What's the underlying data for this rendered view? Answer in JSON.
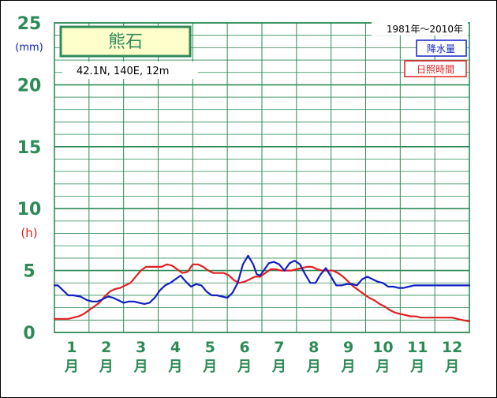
{
  "chart_data": {
    "type": "line",
    "title": "熊石",
    "subtitle": "42.1N, 140E, 12m",
    "period": "1981年〜2010年",
    "y_unit_precip": "(mm)",
    "y_unit_sun": "(h)",
    "ylim": [
      0,
      25
    ],
    "yticks": [
      "0",
      "5",
      "10",
      "15",
      "20",
      "25"
    ],
    "categories": [
      "1",
      "2",
      "3",
      "4",
      "5",
      "6",
      "7",
      "8",
      "9",
      "10",
      "11",
      "12"
    ],
    "month_suffix": "月",
    "grid": true,
    "legend_position": "top-right",
    "series": [
      {
        "name": "降水量",
        "color": "#1020c0",
        "x": [
          0.0,
          0.1,
          0.25,
          0.4,
          0.55,
          0.75,
          0.95,
          1.1,
          1.25,
          1.4,
          1.55,
          1.7,
          1.85,
          2.0,
          2.15,
          2.3,
          2.45,
          2.6,
          2.75,
          2.9,
          3.05,
          3.2,
          3.35,
          3.5,
          3.65,
          3.8,
          3.95,
          4.1,
          4.25,
          4.4,
          4.55,
          4.7,
          4.85,
          5.0,
          5.15,
          5.3,
          5.45,
          5.6,
          5.75,
          5.85,
          5.95,
          6.05,
          6.2,
          6.35,
          6.5,
          6.65,
          6.8,
          6.95,
          7.1,
          7.25,
          7.4,
          7.55,
          7.7,
          7.85,
          8.0,
          8.15,
          8.3,
          8.45,
          8.6,
          8.75,
          8.9,
          9.05,
          9.2,
          9.35,
          9.5,
          9.65,
          9.8,
          9.95,
          10.1,
          10.25,
          10.4,
          10.55,
          10.7,
          10.85,
          11.0,
          11.15,
          11.3,
          11.45,
          11.6,
          11.75,
          11.9,
          12.0
        ],
        "values": [
          3.8,
          3.8,
          3.4,
          3.0,
          3.0,
          2.9,
          2.6,
          2.5,
          2.5,
          2.7,
          2.9,
          2.8,
          2.6,
          2.4,
          2.5,
          2.5,
          2.4,
          2.3,
          2.4,
          2.8,
          3.4,
          3.8,
          4.0,
          4.3,
          4.6,
          4.1,
          3.7,
          3.9,
          3.8,
          3.3,
          3.0,
          3.0,
          2.9,
          2.8,
          3.2,
          4.0,
          5.5,
          6.2,
          5.5,
          4.7,
          4.6,
          5.0,
          5.6,
          5.7,
          5.5,
          5.0,
          5.6,
          5.8,
          5.5,
          4.7,
          4.0,
          4.0,
          4.7,
          5.2,
          4.5,
          3.8,
          3.8,
          3.9,
          3.9,
          3.8,
          4.3,
          4.5,
          4.3,
          4.1,
          4.0,
          3.7,
          3.7,
          3.6,
          3.6,
          3.7,
          3.8,
          3.8,
          3.8,
          3.8,
          3.8,
          3.8,
          3.8,
          3.8,
          3.8,
          3.8,
          3.8,
          3.8
        ]
      },
      {
        "name": "日照時間",
        "color": "#e02020",
        "x": [
          0.0,
          0.2,
          0.4,
          0.55,
          0.7,
          0.85,
          1.0,
          1.15,
          1.3,
          1.45,
          1.6,
          1.75,
          1.9,
          2.05,
          2.2,
          2.35,
          2.5,
          2.65,
          2.8,
          2.95,
          3.1,
          3.25,
          3.4,
          3.55,
          3.7,
          3.85,
          4.0,
          4.15,
          4.3,
          4.45,
          4.6,
          4.75,
          4.9,
          5.05,
          5.2,
          5.35,
          5.5,
          5.65,
          5.8,
          5.95,
          6.1,
          6.25,
          6.4,
          6.55,
          6.7,
          6.85,
          7.0,
          7.15,
          7.3,
          7.45,
          7.6,
          7.75,
          7.9,
          8.05,
          8.2,
          8.35,
          8.5,
          8.65,
          8.8,
          8.95,
          9.1,
          9.25,
          9.4,
          9.55,
          9.7,
          9.85,
          10.0,
          10.15,
          10.3,
          10.45,
          10.6,
          10.75,
          10.9,
          11.05,
          11.2,
          11.35,
          11.5,
          11.65,
          11.8,
          12.0
        ],
        "values": [
          1.1,
          1.1,
          1.1,
          1.2,
          1.3,
          1.5,
          1.8,
          2.1,
          2.4,
          2.9,
          3.3,
          3.5,
          3.6,
          3.8,
          4.0,
          4.5,
          5.0,
          5.3,
          5.3,
          5.3,
          5.3,
          5.5,
          5.4,
          5.1,
          4.8,
          4.9,
          5.5,
          5.5,
          5.3,
          5.0,
          4.8,
          4.8,
          4.8,
          4.6,
          4.2,
          4.0,
          4.1,
          4.3,
          4.5,
          4.5,
          4.8,
          5.1,
          5.1,
          5.0,
          5.0,
          5.0,
          5.1,
          5.2,
          5.3,
          5.3,
          5.1,
          5.0,
          5.0,
          5.0,
          4.8,
          4.5,
          4.1,
          3.7,
          3.4,
          3.1,
          2.8,
          2.6,
          2.3,
          2.1,
          1.8,
          1.6,
          1.5,
          1.4,
          1.3,
          1.3,
          1.2,
          1.2,
          1.2,
          1.2,
          1.2,
          1.2,
          1.2,
          1.1,
          1.0,
          0.9
        ]
      }
    ]
  }
}
